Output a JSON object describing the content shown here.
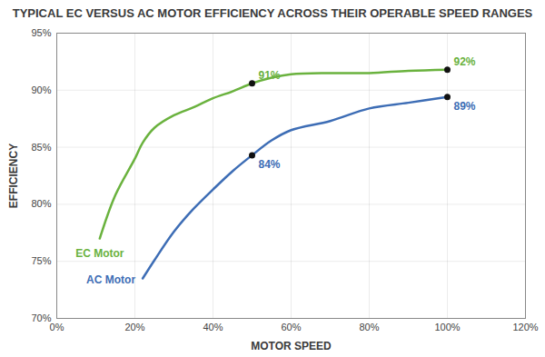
{
  "chart_data": {
    "type": "line",
    "title": "TYPICAL EC VERSUS AC MOTOR EFFICIENCY ACROSS THEIR OPERABLE SPEED RANGES",
    "x_label": "MOTOR SPEED",
    "y_label": "EFFICIENCY",
    "x": [
      11,
      15,
      20,
      22,
      25,
      30,
      35,
      40,
      45,
      50,
      55,
      60,
      70,
      80,
      90,
      100
    ],
    "series": [
      {
        "name": "EC Motor",
        "color": "#6ab23e",
        "values": [
          77,
          80.8,
          84,
          85.4,
          86.7,
          87.8,
          88.5,
          89.3,
          89.9,
          90.6,
          91.1,
          91.4,
          91.5,
          91.5,
          91.7,
          91.8
        ],
        "value_labels": [
          null,
          null,
          null,
          null,
          null,
          null,
          null,
          null,
          null,
          "91%",
          null,
          null,
          null,
          null,
          null,
          "92%"
        ]
      },
      {
        "name": "AC Motor",
        "color": "#3d6db5",
        "values": [
          null,
          null,
          null,
          73.5,
          75.1,
          77.6,
          79.6,
          81.3,
          82.9,
          84.3,
          85.6,
          86.5,
          87.3,
          88.4,
          88.9,
          89.4
        ],
        "value_labels": [
          null,
          null,
          null,
          null,
          null,
          null,
          null,
          null,
          null,
          "84%",
          null,
          null,
          null,
          null,
          null,
          "89%"
        ]
      }
    ],
    "xlim": [
      0,
      120
    ],
    "xticks": [
      {
        "value": 0,
        "label": "0%"
      },
      {
        "value": 20,
        "label": "20%"
      },
      {
        "value": 40,
        "label": "40%"
      },
      {
        "value": 60,
        "label": "60%"
      },
      {
        "value": 80,
        "label": "80%"
      },
      {
        "value": 100,
        "label": "100%"
      },
      {
        "value": 120,
        "label": "120%"
      }
    ],
    "ylim": [
      70,
      95
    ],
    "yticks": [
      {
        "value": 70,
        "label": "70%"
      },
      {
        "value": 75,
        "label": "75%"
      },
      {
        "value": 80,
        "label": "80%"
      },
      {
        "value": 85,
        "label": "85%"
      },
      {
        "value": 90,
        "label": "90%"
      },
      {
        "value": 95,
        "label": "95%"
      }
    ],
    "grid": true,
    "data_labels": true
  }
}
